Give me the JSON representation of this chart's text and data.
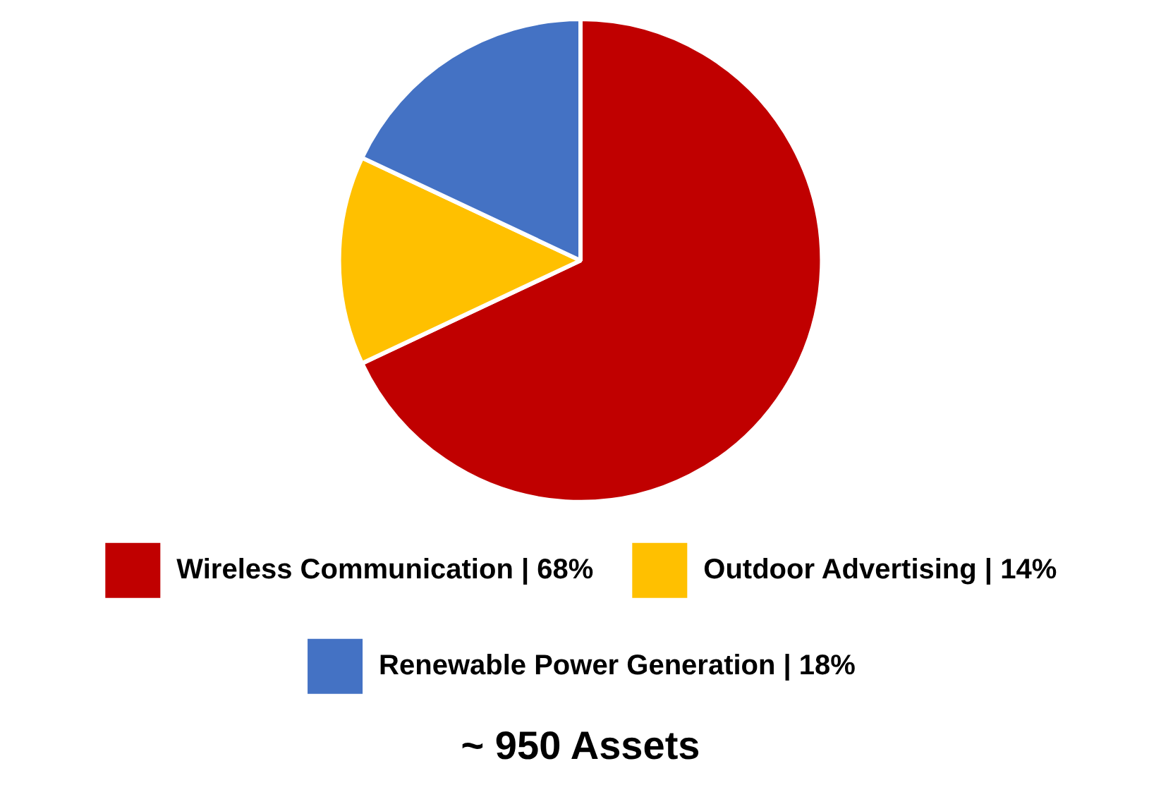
{
  "chart_data": {
    "type": "pie",
    "title": "~ 950 Assets",
    "categories": [
      "Wireless Communication | 68%",
      "Outdoor Advertising | 14%",
      "Renewable Power Generation | 18%"
    ],
    "values": [
      68,
      14,
      18
    ],
    "colors": [
      "#c00000",
      "#ffc000",
      "#4472c4"
    ],
    "legend": "bottom"
  }
}
